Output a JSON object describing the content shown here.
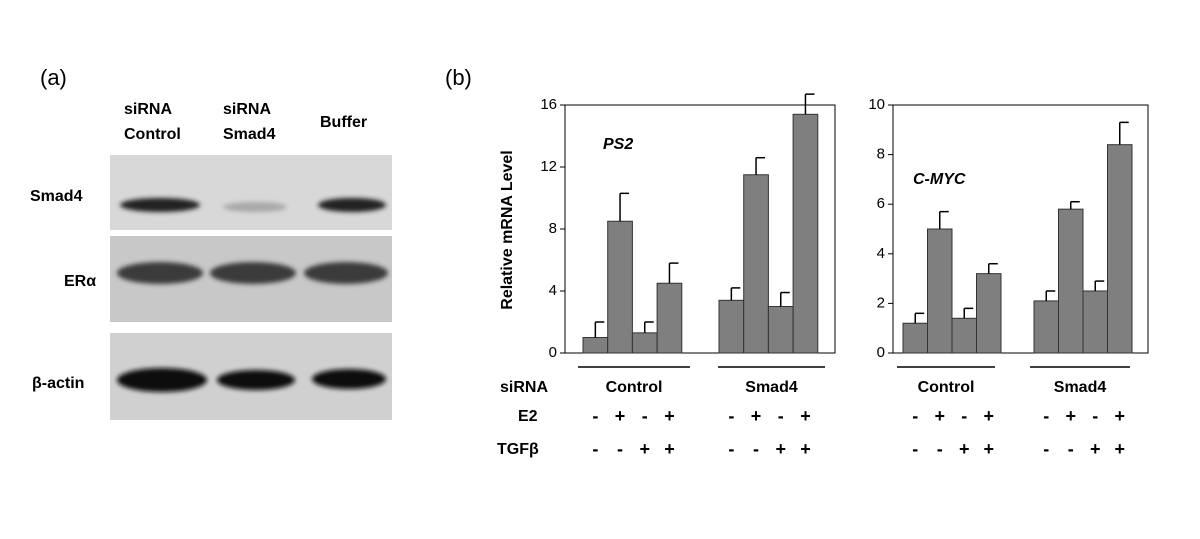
{
  "panel_a": {
    "label": "(a)",
    "lanes": [
      [
        "siRNA",
        "Control"
      ],
      [
        "siRNA",
        "Smad4"
      ],
      [
        "Buffer"
      ]
    ],
    "bands": [
      "Smad4",
      "ERα",
      "β-actin"
    ]
  },
  "panel_b": {
    "label": "(b)",
    "row_labels": [
      "siRNA",
      "E2",
      "TGFβ"
    ]
  },
  "chart_data": [
    {
      "type": "bar",
      "title": "PS2",
      "y_label": "Relative mRNA Level",
      "groups": [
        "Control",
        "Smad4"
      ],
      "values": [
        1.0,
        8.5,
        1.3,
        4.5,
        3.4,
        11.5,
        3.0,
        15.4
      ],
      "errors": [
        1.0,
        1.8,
        0.7,
        1.3,
        0.8,
        1.1,
        0.9,
        1.3
      ],
      "signs": [
        [
          "-",
          "+",
          "-",
          "+",
          "-",
          "+",
          "-",
          "+"
        ],
        [
          "-",
          "-",
          "+",
          "+",
          "-",
          "-",
          "+",
          "+"
        ]
      ],
      "color": "#7f7f7f",
      "ylim": [
        0,
        16
      ],
      "yticks": [
        0,
        4,
        8,
        12,
        16
      ]
    },
    {
      "type": "bar",
      "title": "C-MYC",
      "groups": [
        "Control",
        "Smad4"
      ],
      "values": [
        1.2,
        5.0,
        1.4,
        3.2,
        2.1,
        5.8,
        2.5,
        8.4
      ],
      "errors": [
        0.4,
        0.7,
        0.4,
        0.4,
        0.4,
        0.3,
        0.4,
        0.9
      ],
      "signs": [
        [
          "-",
          "+",
          "-",
          "+",
          "-",
          "+",
          "-",
          "+"
        ],
        [
          "-",
          "-",
          "+",
          "+",
          "-",
          "-",
          "+",
          "+"
        ]
      ],
      "color": "#7f7f7f",
      "ylim": [
        0,
        10
      ],
      "yticks": [
        0,
        2,
        4,
        6,
        8,
        10
      ]
    }
  ]
}
